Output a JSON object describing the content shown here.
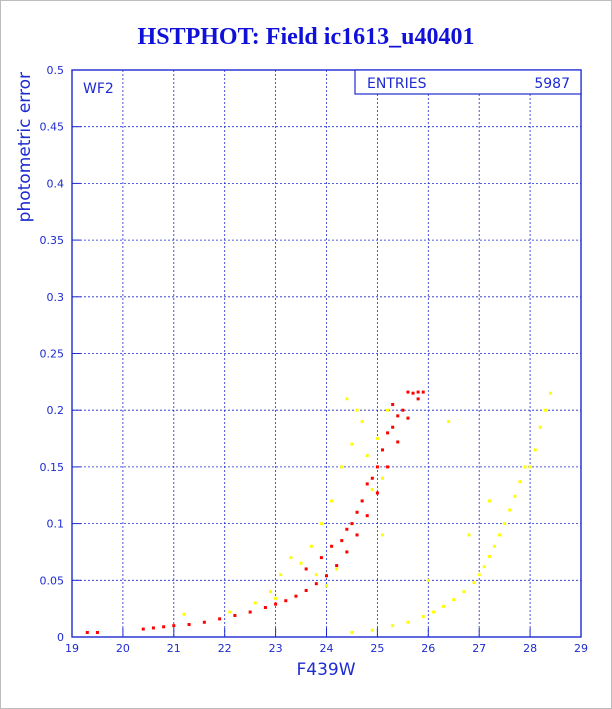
{
  "title": "HSTPHOT: Field ic1613_u40401",
  "colors": {
    "axis": "#1d2bd0",
    "grid": "#1d2bd0",
    "red": "#ff0000",
    "yellow": "#ffff00",
    "title": "#0f10d8"
  },
  "chart_data": {
    "type": "scatter",
    "title": "HSTPHOT: Field ic1613_u40401",
    "xlabel": "F439W",
    "ylabel": "photometric error",
    "panel_label": "WF2",
    "stats_label": "ENTRIES",
    "stats_value": "5987",
    "xlim": [
      19,
      29
    ],
    "ylim": [
      0,
      0.5
    ],
    "xticks": [
      19,
      20,
      21,
      22,
      23,
      24,
      25,
      26,
      27,
      28,
      29
    ],
    "yticks": [
      0,
      0.05,
      0.1,
      0.15,
      0.2,
      0.25,
      0.3,
      0.35,
      0.4,
      0.45,
      0.5
    ],
    "grid": true,
    "series": [
      {
        "color": "#ff0000",
        "values": [
          [
            19.3,
            0.004
          ],
          [
            19.5,
            0.004
          ],
          [
            20.4,
            0.007
          ],
          [
            20.6,
            0.008
          ],
          [
            20.8,
            0.009
          ],
          [
            21.0,
            0.01
          ],
          [
            21.3,
            0.011
          ],
          [
            21.6,
            0.013
          ],
          [
            21.9,
            0.016
          ],
          [
            22.2,
            0.019
          ],
          [
            22.5,
            0.022
          ],
          [
            22.8,
            0.026
          ],
          [
            23.0,
            0.029
          ],
          [
            23.2,
            0.032
          ],
          [
            23.4,
            0.036
          ],
          [
            23.6,
            0.041
          ],
          [
            23.8,
            0.047
          ],
          [
            24.0,
            0.054
          ],
          [
            24.2,
            0.063
          ],
          [
            24.4,
            0.075
          ],
          [
            24.6,
            0.09
          ],
          [
            24.8,
            0.107
          ],
          [
            25.0,
            0.127
          ],
          [
            25.2,
            0.15
          ],
          [
            25.4,
            0.172
          ],
          [
            25.6,
            0.193
          ],
          [
            25.8,
            0.21
          ],
          [
            25.9,
            0.216
          ],
          [
            24.3,
            0.085
          ],
          [
            24.5,
            0.1
          ],
          [
            24.7,
            0.12
          ],
          [
            24.9,
            0.14
          ],
          [
            25.1,
            0.165
          ],
          [
            25.3,
            0.185
          ],
          [
            25.5,
            0.2
          ],
          [
            25.7,
            0.215
          ],
          [
            24.1,
            0.08
          ],
          [
            24.6,
            0.11
          ],
          [
            25.0,
            0.15
          ],
          [
            25.4,
            0.195
          ],
          [
            23.9,
            0.07
          ],
          [
            24.8,
            0.135
          ],
          [
            25.2,
            0.18
          ],
          [
            25.6,
            0.216
          ],
          [
            23.6,
            0.06
          ],
          [
            24.4,
            0.095
          ],
          [
            25.8,
            0.216
          ],
          [
            25.3,
            0.205
          ]
        ]
      },
      {
        "color": "#ffff00",
        "values": [
          [
            21.2,
            0.02
          ],
          [
            22.1,
            0.022
          ],
          [
            22.9,
            0.04
          ],
          [
            23.1,
            0.055
          ],
          [
            23.3,
            0.07
          ],
          [
            23.5,
            0.065
          ],
          [
            23.7,
            0.08
          ],
          [
            23.9,
            0.1
          ],
          [
            24.1,
            0.12
          ],
          [
            24.3,
            0.15
          ],
          [
            24.5,
            0.17
          ],
          [
            24.6,
            0.2
          ],
          [
            24.4,
            0.21
          ],
          [
            24.7,
            0.19
          ],
          [
            24.8,
            0.16
          ],
          [
            24.9,
            0.13
          ],
          [
            25.0,
            0.175
          ],
          [
            25.1,
            0.14
          ],
          [
            25.2,
            0.2
          ],
          [
            25.1,
            0.09
          ],
          [
            24.2,
            0.06
          ],
          [
            24.0,
            0.045
          ],
          [
            23.8,
            0.055
          ],
          [
            24.5,
            0.004
          ],
          [
            24.9,
            0.006
          ],
          [
            25.3,
            0.01
          ],
          [
            25.6,
            0.013
          ],
          [
            25.9,
            0.018
          ],
          [
            26.1,
            0.022
          ],
          [
            26.3,
            0.027
          ],
          [
            26.5,
            0.033
          ],
          [
            26.7,
            0.04
          ],
          [
            26.9,
            0.048
          ],
          [
            27.0,
            0.055
          ],
          [
            27.1,
            0.062
          ],
          [
            27.2,
            0.071
          ],
          [
            27.3,
            0.08
          ],
          [
            27.4,
            0.09
          ],
          [
            27.5,
            0.1
          ],
          [
            27.6,
            0.112
          ],
          [
            27.7,
            0.124
          ],
          [
            27.8,
            0.137
          ],
          [
            27.9,
            0.15
          ],
          [
            28.0,
            0.15
          ],
          [
            28.1,
            0.165
          ],
          [
            28.2,
            0.185
          ],
          [
            28.3,
            0.2
          ],
          [
            28.4,
            0.215
          ],
          [
            26.0,
            0.05
          ],
          [
            26.8,
            0.09
          ],
          [
            27.2,
            0.12
          ],
          [
            26.4,
            0.19
          ],
          [
            23.0,
            0.034
          ],
          [
            22.6,
            0.03
          ]
        ]
      }
    ]
  }
}
